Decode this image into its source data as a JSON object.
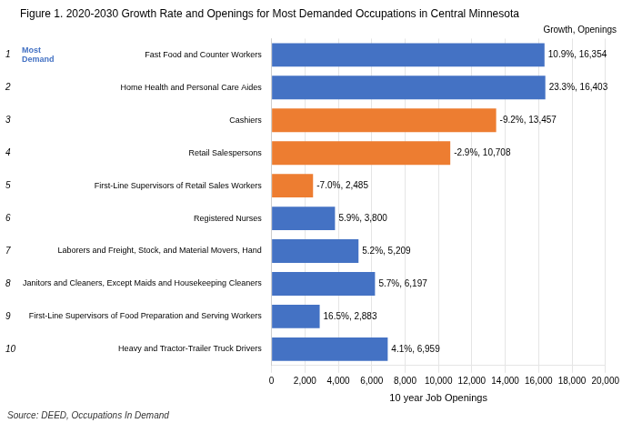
{
  "chart_data": {
    "type": "bar",
    "orientation": "horizontal",
    "title": "Figure 1. 2020-2030 Growth Rate and Openings for Most Demanded Occupations in Central Minnesota",
    "xlabel": "10 year Job Openings",
    "source": "Source: DEED, Occupations In Demand",
    "annotations": [
      {
        "text": "Most\nDemand",
        "color": "#4472C4"
      },
      {
        "text": "Growth, Openings"
      }
    ],
    "categories": [
      "Fast Food and Counter Workers",
      "Home Health and Personal Care Aides",
      "Cashiers",
      "Retail Salespersons",
      "First-Line Supervisors of Retail Sales Workers",
      "Registered Nurses",
      "Laborers and Freight, Stock, and Material Movers, Hand",
      "Janitors and Cleaners, Except Maids and Housekeeping Cleaners",
      "First-Line Supervisors of Food Preparation and Serving Workers",
      "Heavy and Tractor-Trailer Truck Drivers"
    ],
    "ranks": [
      1,
      2,
      3,
      4,
      5,
      6,
      7,
      8,
      9,
      10
    ],
    "values": [
      16354,
      16403,
      13457,
      10708,
      2485,
      3800,
      5209,
      6197,
      2883,
      6959
    ],
    "value_labels": [
      "10.9%, 16,354",
      "23.3%, 16,403",
      "-9.2%, 13,457",
      "-2.9%, 10,708",
      "-7.0%, 2,485",
      "5.9%, 3,800",
      "5.2%, 5,209",
      "5.7%, 6,197",
      "16.5%, 2,883",
      "4.1%, 6,959"
    ],
    "data_labels": true,
    "colors": [
      "#4472C4",
      "#4472C4",
      "#ED7D31",
      "#ED7D31",
      "#ED7D31",
      "#4472C4",
      "#4472C4",
      "#4472C4",
      "#4472C4",
      "#4472C4"
    ],
    "xlim": [
      0,
      20000
    ],
    "xticks": [
      0,
      {
        "value": 2000,
        "label": "2,000"
      },
      {
        "value": 4000,
        "label": "4,000"
      },
      {
        "value": 6000,
        "label": "6,000"
      },
      {
        "value": 8000,
        "label": "8,000"
      },
      {
        "value": 10000,
        "label": "10,000"
      },
      {
        "value": 12000,
        "label": "12,000"
      },
      {
        "value": 14000,
        "label": "14,000"
      },
      {
        "value": 16000,
        "label": "16,000"
      },
      {
        "value": 18000,
        "label": "18,000"
      },
      {
        "value": 20000,
        "label": "20,000"
      }
    ],
    "grid": true
  }
}
